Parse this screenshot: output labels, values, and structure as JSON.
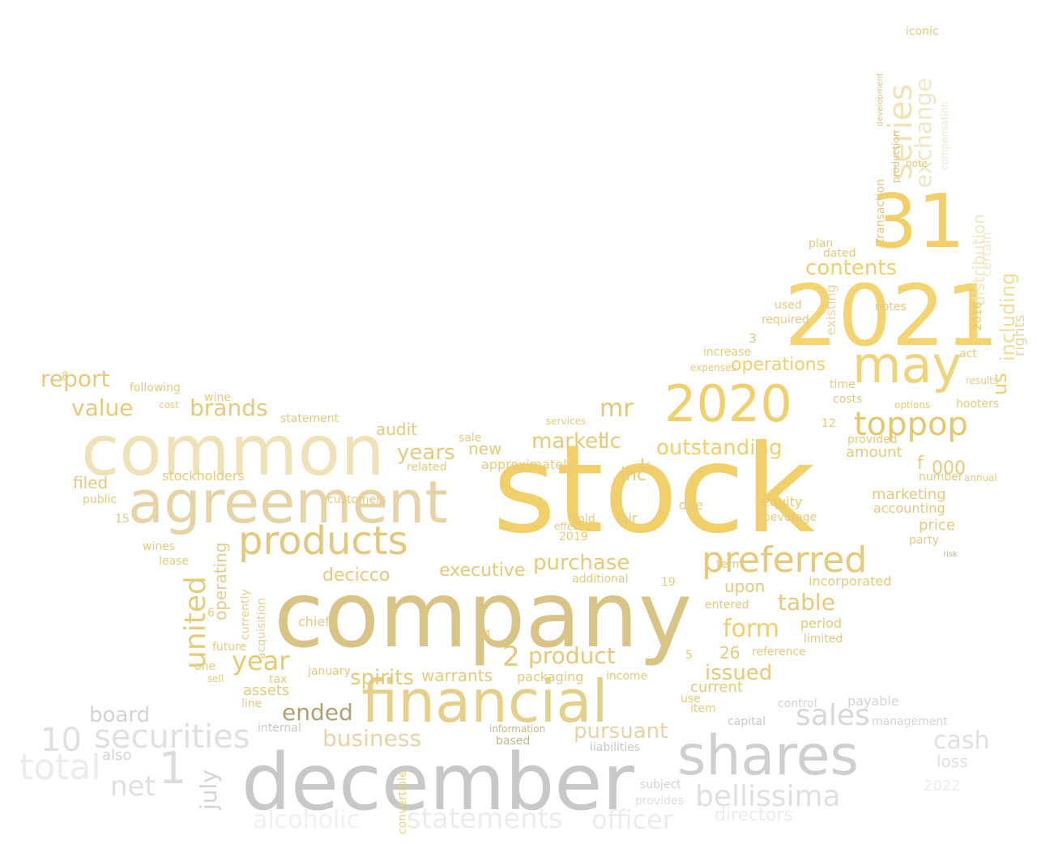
{
  "wordcloud": {
    "shape": "banana",
    "colors": {
      "gold": "#f1d06a",
      "gold_light": "#f3d98a",
      "tan": "#e6d4a6",
      "olive": "#c8b787",
      "brown": "#b0a074",
      "gray": "#c8c8c8",
      "gray_light": "#e0e0e0",
      "background": "#ffffff"
    },
    "words": {
      "stock": "stock",
      "company": "company",
      "december": "december",
      "common": "common",
      "agreement": "agreement",
      "n2021": "2021",
      "n31": "31",
      "financial": "financial",
      "shares": "shares",
      "products": "products",
      "may": "may",
      "n2020": "2020",
      "preferred": "preferred",
      "toppop": "toppop",
      "series": "series",
      "exchange": "exchange",
      "united": "united",
      "year": "year",
      "business": "business",
      "securities": "securities",
      "sales": "sales",
      "bellissima": "bellissima",
      "outstanding": "outstanding",
      "purchase": "purchase",
      "form": "form",
      "table": "table",
      "contents": "contents",
      "operations": "operations",
      "issued": "issued",
      "ended": "ended",
      "spirits": "spirits",
      "product": "product",
      "n2": "2",
      "market": "market",
      "llc": "llc",
      "mr": "mr",
      "brands": "brands",
      "value": "value",
      "report": "report",
      "board": "board",
      "also": "also",
      "net": "net",
      "n10": "10",
      "n1": "1",
      "july": "july",
      "pursuant": "pursuant",
      "cash": "cash",
      "loss": "loss",
      "total": "total",
      "statements": "statements",
      "officer": "officer",
      "alcoholic": "alcoholic",
      "directors": "directors",
      "executive": "executive",
      "decicco": "decicco",
      "warrants": "warrants",
      "audit": "audit",
      "years": "years",
      "new": "new",
      "approximately": "approximately",
      "related": "related",
      "inc": "inc",
      "k": "k",
      "n000": "000",
      "amount": "amount",
      "marketing": "marketing",
      "accounting": "accounting",
      "equity": "equity",
      "price": "price",
      "beverage": "beverage",
      "party": "party",
      "current": "current",
      "n26": "26",
      "reference": "reference",
      "period": "period",
      "limited": "limited",
      "incorporated": "incorporated",
      "upon": "upon",
      "entered": "entered",
      "additional": "additional",
      "packaging": "packaging",
      "income": "income",
      "sold": "sold",
      "n2019": "2019",
      "fair": "fair",
      "due": "due",
      "operating": "operating",
      "assets": "assets",
      "tax": "tax",
      "line": "line",
      "january": "january",
      "chief": "chief",
      "future": "future",
      "one": "one",
      "sell": "sell",
      "stockholders": "stockholders",
      "filed": "filed",
      "public": "public",
      "wines": "wines",
      "lease": "lease",
      "wine": "wine",
      "following": "following",
      "cost": "cost",
      "including": "including",
      "distribution": "distribution",
      "us": "us",
      "certain": "certain",
      "rights": "rights",
      "f": "f",
      "costs": "costs",
      "time": "time",
      "options": "options",
      "hooters": "hooters",
      "results": "results",
      "act": "act",
      "notes": "notes",
      "used": "used",
      "required": "required",
      "increase": "increase",
      "expenses": "expenses",
      "plan": "plan",
      "dated": "dated",
      "transaction": "transaction",
      "note": "note",
      "iconic": "iconic",
      "compensation": "compensation",
      "production": "production",
      "development": "development",
      "existing": "existing",
      "provided": "provided",
      "annual": "annual",
      "number": "number",
      "services": "services",
      "effect": "effect",
      "information": "information",
      "based": "based",
      "liabilities": "liabilities",
      "subject": "subject",
      "provides": "provides",
      "control": "control",
      "payable": "payable",
      "capital": "capital",
      "management": "management",
      "item": "item",
      "use": "use",
      "term": "term",
      "customers": "customers",
      "statement": "statement",
      "sale": "sale",
      "internal": "internal",
      "convertible": "convertible",
      "currently": "currently",
      "acquisition": "acquisition",
      "n12": "12",
      "n15": "15",
      "n4": "4",
      "n8": "8",
      "n3": "3",
      "n5": "5",
      "n6": "6",
      "n19": "19",
      "n2022": "2022",
      "n2018": "2018",
      "risk": "risk"
    }
  }
}
